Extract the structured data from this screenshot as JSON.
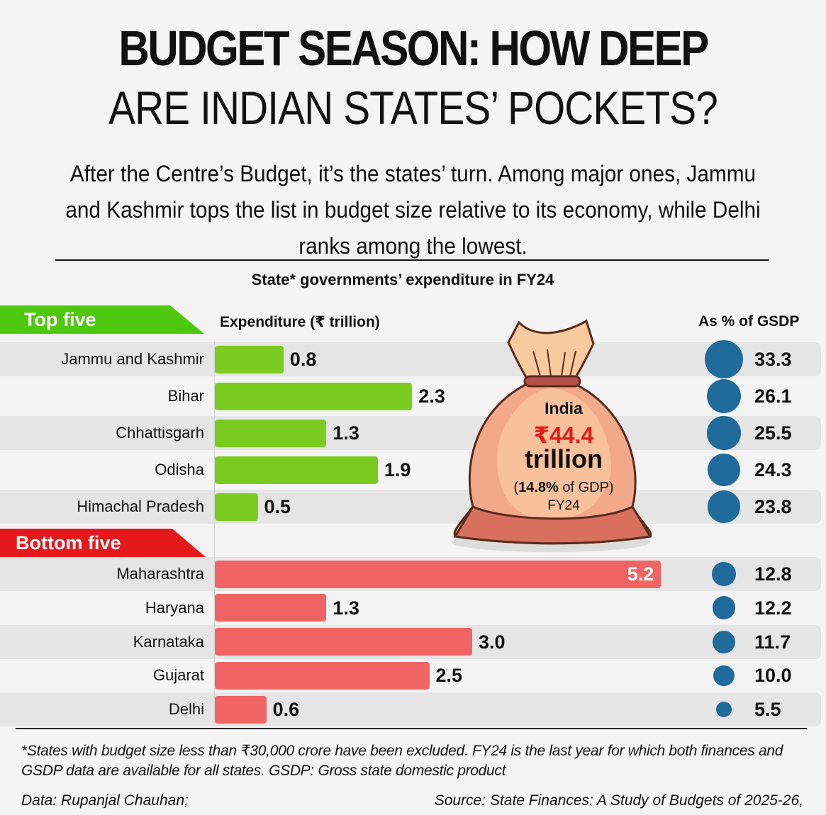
{
  "header": {
    "title_line1": "BUDGET SEASON: HOW DEEP",
    "title_line2": "ARE INDIAN STATES’ POCKETS?",
    "subtitle": "After the Centre’s Budget, it’s the states’ turn. Among major ones, Jammu and Kashmir tops the list in budget size relative to its economy, while Delhi ranks among the lowest."
  },
  "chart_data": {
    "type": "bar",
    "title": "State* governments’ expenditure in FY24",
    "xlabel": "Expenditure (₹ trillion)",
    "secondary_label": "As % of GSDP",
    "groups": [
      {
        "name": "Top five",
        "color": "#7acb1f",
        "tag_color": "#4ec80f",
        "rows": [
          {
            "state": "Jammu and Kashmir",
            "expenditure": 0.8,
            "pct_gsdp": 33.3
          },
          {
            "state": "Bihar",
            "expenditure": 2.3,
            "pct_gsdp": 26.1
          },
          {
            "state": "Chhattisgarh",
            "expenditure": 1.3,
            "pct_gsdp": 25.5
          },
          {
            "state": "Odisha",
            "expenditure": 1.9,
            "pct_gsdp": 24.3
          },
          {
            "state": "Himachal Pradesh",
            "expenditure": 0.5,
            "pct_gsdp": 23.8
          }
        ]
      },
      {
        "name": "Bottom five",
        "color": "#f06464",
        "tag_color": "#e5191c",
        "rows": [
          {
            "state": "Maharashtra",
            "expenditure": 5.2,
            "pct_gsdp": 12.8
          },
          {
            "state": "Haryana",
            "expenditure": 1.3,
            "pct_gsdp": 12.2
          },
          {
            "state": "Karnataka",
            "expenditure": 3.0,
            "pct_gsdp": 11.7
          },
          {
            "state": "Gujarat",
            "expenditure": 2.5,
            "pct_gsdp": 10.0
          },
          {
            "state": "Delhi",
            "expenditure": 0.6,
            "pct_gsdp": 5.5
          }
        ]
      }
    ],
    "value_labels_exp": [
      "0.8",
      "2.3",
      "1.3",
      "1.9",
      "0.5",
      "5.2",
      "1.3",
      "3.0",
      "2.5",
      "0.6"
    ],
    "value_labels_pct": [
      "33.3",
      "26.1",
      "25.5",
      "24.3",
      "23.8",
      "12.8",
      "12.2",
      "11.7",
      "10.0",
      "5.5"
    ],
    "bubble_color": "#1f6b9c",
    "xlim": [
      0,
      5.2
    ]
  },
  "callout": {
    "label": "India",
    "amount": "₹44.4",
    "unit": "trillion",
    "gdp_pct": "14.8%",
    "gdp_suffix": " of GDP)",
    "gdp_prefix": "(",
    "year": "FY24"
  },
  "footer": {
    "note": "*States with budget size less than ₹30,000 crore have been excluded. FY24 is the last year for which both finances and GSDP data are available for all states. GSDP: Gross state domestic product",
    "credit": "Data: Rupanjal Chauhan;",
    "source": "Source: State Finances: A Study of Budgets of 2025-26,"
  }
}
